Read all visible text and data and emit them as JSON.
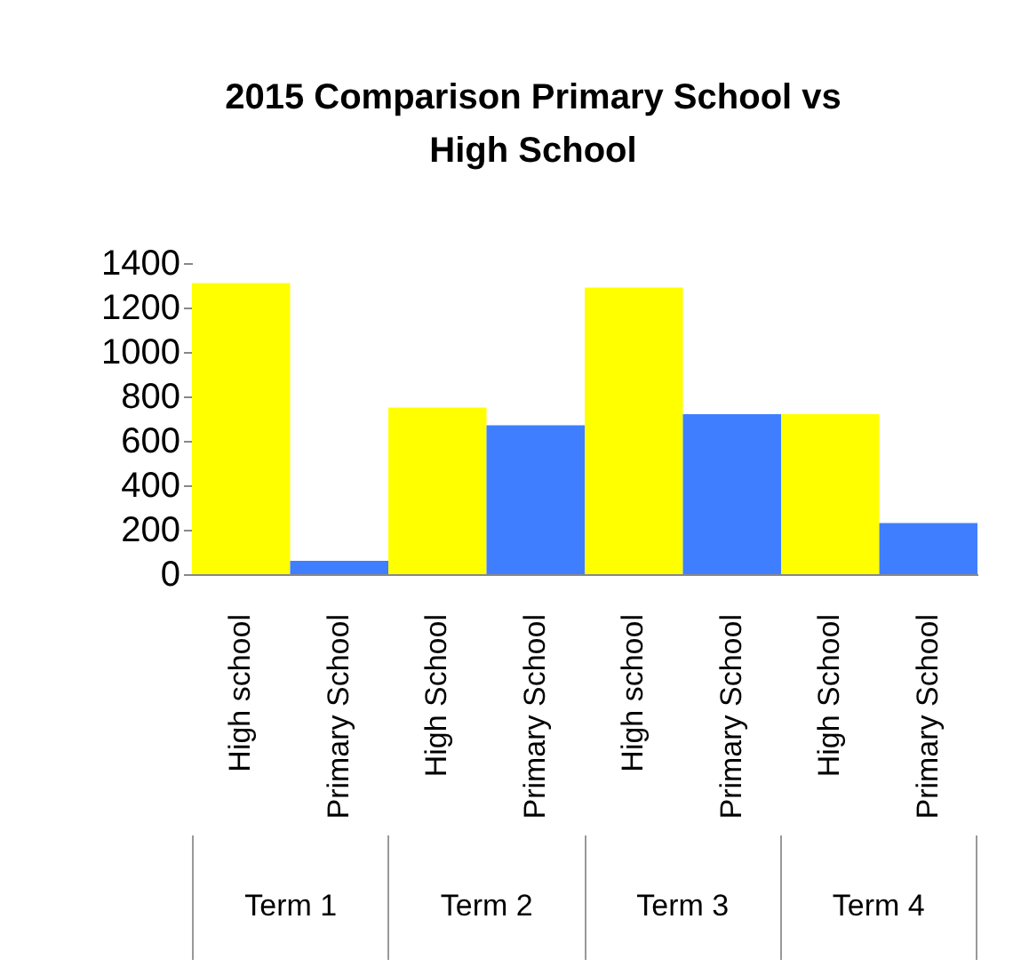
{
  "chart_data": {
    "type": "bar",
    "title": "2015 Comparison Primary School  vs High School",
    "categories": [
      "High school",
      "Primary School",
      "High School",
      "Primary School",
      "High school",
      "Primary School",
      "High School",
      "Primary School"
    ],
    "values": [
      1310,
      60,
      750,
      670,
      1290,
      720,
      720,
      230
    ],
    "colors": [
      "#ffff00",
      "#3f7fff",
      "#ffff00",
      "#3f7fff",
      "#ffff00",
      "#3f7fff",
      "#ffff00",
      "#3f7fff"
    ],
    "ylim": [
      0,
      1400
    ],
    "yticks": [
      0,
      200,
      400,
      600,
      800,
      1000,
      1200,
      1400
    ],
    "grid": false,
    "annotations": [
      "Term 1",
      "Term 2",
      "Term 3",
      "Term 4"
    ]
  }
}
